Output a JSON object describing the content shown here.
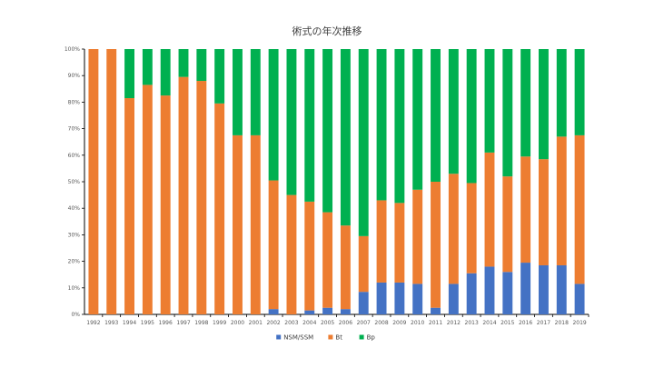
{
  "chart_data": {
    "type": "bar",
    "stacked": true,
    "percent": true,
    "title": "術式の年次推移",
    "xlabel": "",
    "ylabel": "",
    "ylim": [
      0,
      100
    ],
    "y_ticks": [
      "0%",
      "10%",
      "20%",
      "30%",
      "40%",
      "50%",
      "60%",
      "70%",
      "80%",
      "90%",
      "100%"
    ],
    "grid": false,
    "legend_position": "bottom",
    "categories": [
      "1992",
      "1993",
      "1994",
      "1995",
      "1996",
      "1997",
      "1998",
      "1999",
      "2000",
      "2001",
      "2002",
      "2003",
      "2004",
      "2005",
      "2006",
      "2007",
      "2008",
      "2009",
      "2010",
      "2011",
      "2012",
      "2013",
      "2014",
      "2015",
      "2016",
      "2017",
      "2018",
      "2019"
    ],
    "series": [
      {
        "name": "NSM/SSM",
        "color": "#4472c4",
        "values": [
          0,
          0,
          0,
          0,
          0,
          0,
          0,
          0,
          0,
          0,
          2,
          0,
          1.5,
          2.5,
          2,
          8.5,
          12,
          12,
          11.5,
          2.5,
          11.5,
          15.5,
          18,
          16,
          19.5,
          18.5,
          18.5,
          11.5
        ]
      },
      {
        "name": "Bt",
        "color": "#ed7d31",
        "values": [
          100,
          100,
          81.5,
          86.5,
          82.5,
          89.5,
          88,
          79.5,
          67.5,
          67.5,
          48.5,
          45,
          41,
          36,
          31.5,
          21,
          31,
          30,
          35.5,
          47.5,
          41.5,
          34,
          43,
          36,
          40,
          40,
          48.5,
          56
        ]
      },
      {
        "name": "Bp",
        "color": "#00b050",
        "values": [
          0,
          0,
          18.5,
          13.5,
          17.5,
          10.5,
          12,
          20.5,
          32.5,
          32.5,
          49.5,
          55,
          57.5,
          61.5,
          66.5,
          70.5,
          57,
          58,
          53,
          50,
          47,
          50.5,
          39,
          48,
          40.5,
          41.5,
          33,
          32.5
        ]
      }
    ]
  }
}
